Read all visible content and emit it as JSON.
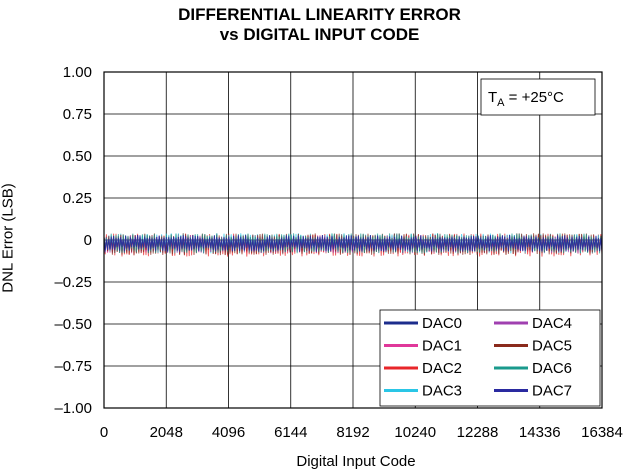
{
  "chart_data": {
    "type": "line",
    "title": [
      "DIFFERENTIAL LINEARITY ERROR",
      "vs DIGITAL INPUT CODE"
    ],
    "xlabel": "Digital Input Code",
    "ylabel": "DNL Error (LSB)",
    "xlim": [
      0,
      16384
    ],
    "ylim": [
      -1.0,
      1.0
    ],
    "x_ticks": [
      0,
      2048,
      4096,
      6144,
      8192,
      10240,
      12288,
      14336,
      16384
    ],
    "y_ticks": [
      1.0,
      0.75,
      0.5,
      0.25,
      0,
      -0.25,
      -0.5,
      -0.75,
      -1.0
    ],
    "y_tick_labels": [
      "1.00",
      "0.75",
      "0.50",
      "0.25",
      "0",
      "–0.25",
      "–0.50",
      "–0.75",
      "–1.00"
    ],
    "grid": true,
    "legend_placement": "bottom-right",
    "annotation": {
      "base": "T",
      "sub": "A",
      "rest": " = +25°C"
    },
    "series": [
      {
        "name": "DAC0",
        "color": "#1c2d8c",
        "band": [
          -0.07,
          0.03
        ]
      },
      {
        "name": "DAC1",
        "color": "#e0389a",
        "band": [
          -0.08,
          0.03
        ]
      },
      {
        "name": "DAC2",
        "color": "#e8262a",
        "band": [
          -0.1,
          0.04
        ]
      },
      {
        "name": "DAC3",
        "color": "#2ac6e6",
        "band": [
          -0.08,
          0.04
        ]
      },
      {
        "name": "DAC4",
        "color": "#a040b0",
        "band": [
          -0.08,
          0.03
        ]
      },
      {
        "name": "DAC5",
        "color": "#8a2a1c",
        "band": [
          -0.09,
          0.04
        ]
      },
      {
        "name": "DAC6",
        "color": "#1a9a8c",
        "band": [
          -0.08,
          0.04
        ]
      },
      {
        "name": "DAC7",
        "color": "#2a2aa0",
        "band": [
          -0.07,
          0.03
        ]
      }
    ]
  }
}
